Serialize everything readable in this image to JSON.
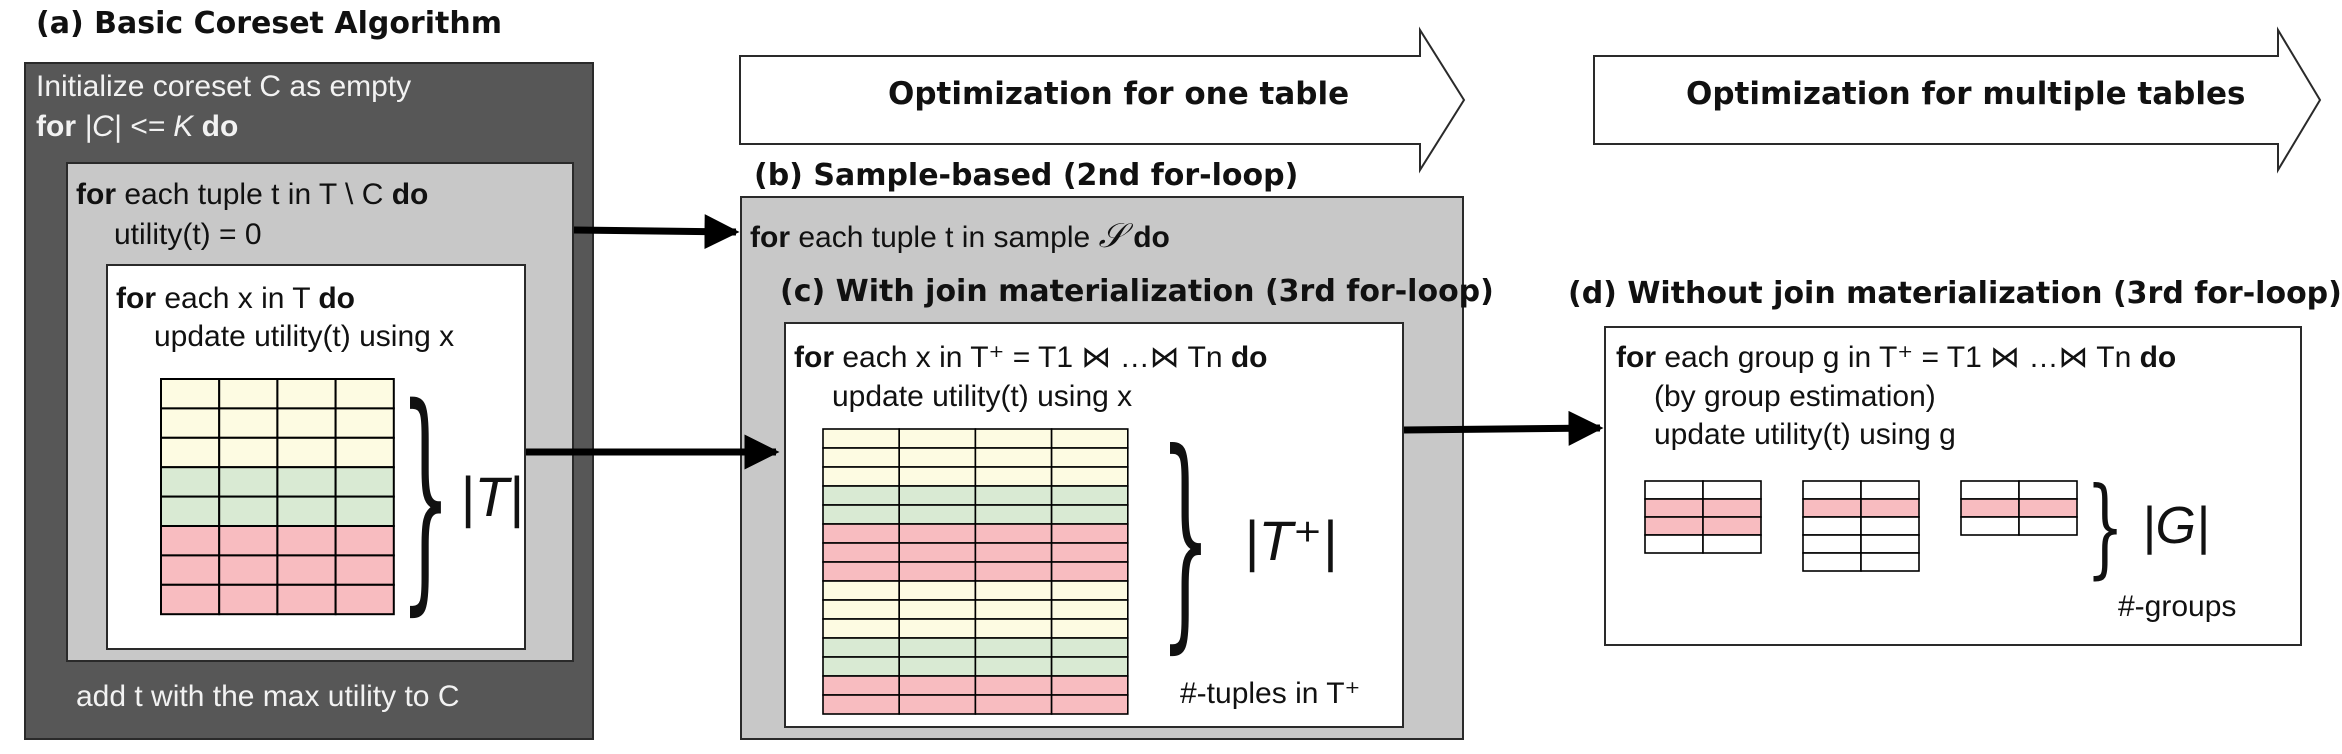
{
  "panel_a": {
    "title": "(a) Basic Coreset Algorithm",
    "init": "Initialize coreset C as empty",
    "for_kw": "for",
    "loop_cond": "|C| <= K",
    "do_kw": "do",
    "inner_line1_rest": "each tuple t in T \\ C",
    "inner_line2": "utility(t) = 0",
    "innermost_line1_rest": "each x in T",
    "innermost_line2": "update utility(t) using x",
    "brace_label": "|T|",
    "footer": "add t with the max utility to C"
  },
  "arrow_one": {
    "label": "Optimization for one table"
  },
  "arrow_multi": {
    "label": "Optimization for multiple tables"
  },
  "panel_b": {
    "title": "(b) Sample-based (2nd for-loop)",
    "line_prefix": "each tuple t in sample",
    "sample_symbol": "𝒮",
    "do_kw": "do"
  },
  "panel_c": {
    "title": "(c) With join materialization (3rd for-loop)",
    "line1": "each x in T⁺ = T1 ⋈  …⋈  Tn",
    "do_kw": "do",
    "line2": "update utility(t) using x",
    "brace_label": "|T⁺|",
    "caption": "#-tuples in T⁺"
  },
  "panel_d": {
    "title": "(d) Without join materialization (3rd for-loop)",
    "line1": "each group g in T⁺ = T1 ⋈   …⋈   Tn",
    "do_kw": "do",
    "line2": "(by group estimation)",
    "line3": "update utility(t) using g",
    "brace_label": "|G|",
    "caption": "#-groups"
  },
  "colors": {
    "dark_panel": "#575757",
    "light_panel": "#c8c8c8",
    "yellow_row": "#fdfbe2",
    "green_row": "#d9ead3",
    "pink_row": "#f8bcc0",
    "white_row": "#ffffff"
  },
  "tables": {
    "a_rows": [
      "yellow",
      "yellow",
      "yellow",
      "green",
      "green",
      "pink",
      "pink",
      "pink"
    ],
    "c_rows": [
      "yellow",
      "yellow",
      "yellow",
      "green",
      "green",
      "pink",
      "pink",
      "pink",
      "yellow",
      "yellow",
      "yellow",
      "green",
      "green",
      "pink",
      "pink"
    ],
    "d1_rows": [
      "white",
      "pink",
      "pink",
      "white"
    ],
    "d2_rows": [
      "white",
      "pink",
      "white",
      "white",
      "white"
    ],
    "d3_rows": [
      "white",
      "pink",
      "white"
    ]
  }
}
